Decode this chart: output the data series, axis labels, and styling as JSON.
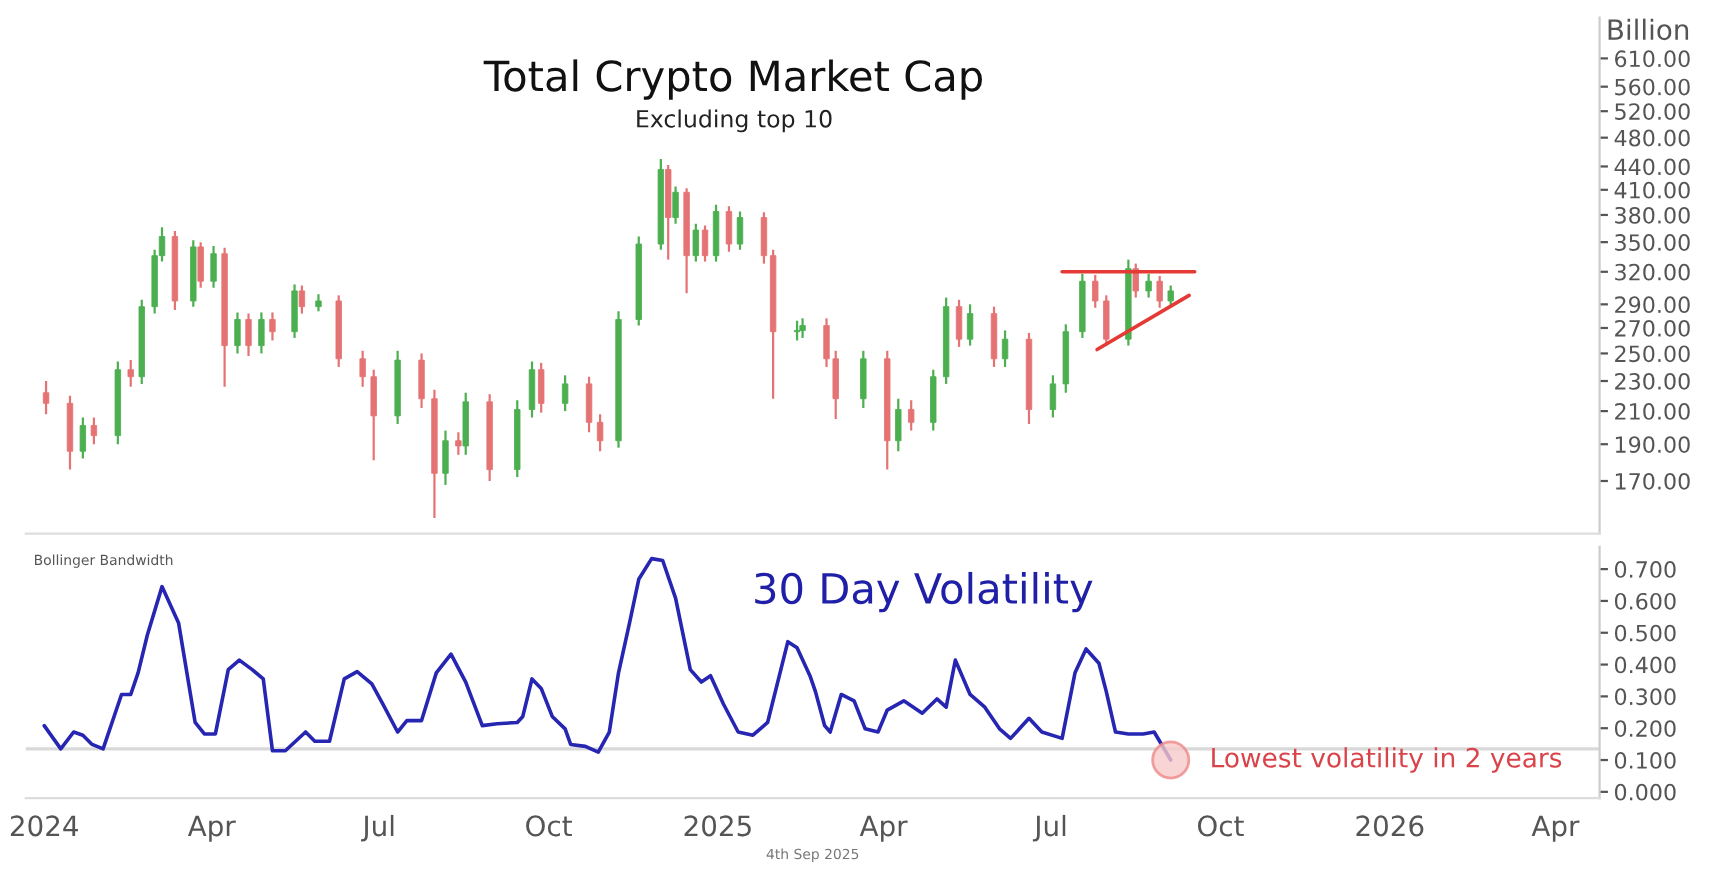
{
  "chart_data": [
    {
      "type": "candlestick",
      "title": "Total Crypto Market Cap",
      "subtitle": "Excluding top 10",
      "ylabel": "Billion",
      "log": true,
      "tick_labels": "y",
      "xlim": [
        "2023-12-22",
        "2026-04-25"
      ],
      "ylim": [
        145,
        690
      ],
      "yticks": [
        {
          "value": 170,
          "label": "170.00"
        },
        {
          "value": 190,
          "label": "190.00"
        },
        {
          "value": 210,
          "label": "210.00"
        },
        {
          "value": 230,
          "label": "230.00"
        },
        {
          "value": 250,
          "label": "250.00"
        },
        {
          "value": 270,
          "label": "270.00"
        },
        {
          "value": 290,
          "label": "290.00"
        },
        {
          "value": 320,
          "label": "320.00"
        },
        {
          "value": 350,
          "label": "350.00"
        },
        {
          "value": 380,
          "label": "380.00"
        },
        {
          "value": 410,
          "label": "410.00"
        },
        {
          "value": 440,
          "label": "440.00"
        },
        {
          "value": 480,
          "label": "480.00"
        },
        {
          "value": 520,
          "label": "520.00"
        },
        {
          "value": 560,
          "label": "560.00"
        },
        {
          "value": 610,
          "label": "610.00"
        }
      ],
      "x": [
        "2024-01-02",
        "2024-01-15",
        "2024-01-22",
        "2024-01-28",
        "2024-02-10",
        "2024-02-17",
        "2024-02-23",
        "2024-03-01",
        "2024-03-05",
        "2024-03-12",
        "2024-03-22",
        "2024-03-26",
        "2024-04-02",
        "2024-04-08",
        "2024-04-15",
        "2024-04-21",
        "2024-04-28",
        "2024-05-04",
        "2024-05-16",
        "2024-05-20",
        "2024-05-29",
        "2024-06-09",
        "2024-06-22",
        "2024-06-28",
        "2024-07-11",
        "2024-07-24",
        "2024-07-31",
        "2024-08-06",
        "2024-08-13",
        "2024-08-17",
        "2024-08-30",
        "2024-09-14",
        "2024-09-22",
        "2024-09-27",
        "2024-10-10",
        "2024-10-23",
        "2024-10-29",
        "2024-11-08",
        "2024-11-19",
        "2024-12-01",
        "2024-12-05",
        "2024-12-09",
        "2024-12-15",
        "2024-12-20",
        "2024-12-25",
        "2024-12-31",
        "2025-01-07",
        "2025-01-13",
        "2025-01-26",
        "2025-01-31",
        "2025-02-13",
        "2025-02-16",
        "2025-03-01",
        "2025-03-06",
        "2025-03-21",
        "2025-04-03",
        "2025-04-09",
        "2025-04-16",
        "2025-04-28",
        "2025-05-05",
        "2025-05-12",
        "2025-05-18",
        "2025-05-31",
        "2025-06-06",
        "2025-06-19",
        "2025-07-02",
        "2025-07-09",
        "2025-07-18",
        "2025-07-25",
        "2025-07-31",
        "2025-08-12",
        "2025-08-16",
        "2025-08-23",
        "2025-08-29",
        "2025-09-04"
      ],
      "ohlc": [
        [
          222,
          230,
          208,
          215
        ],
        [
          215,
          220,
          176,
          186
        ],
        [
          186,
          206,
          182,
          201
        ],
        [
          201,
          206,
          190,
          195
        ],
        [
          195,
          244,
          190,
          238
        ],
        [
          238,
          245,
          226,
          233
        ],
        [
          233,
          294,
          228,
          288
        ],
        [
          288,
          342,
          282,
          336
        ],
        [
          336,
          366,
          330,
          356
        ],
        [
          356,
          362,
          285,
          293
        ],
        [
          293,
          352,
          288,
          345
        ],
        [
          345,
          350,
          305,
          311
        ],
        [
          311,
          346,
          305,
          338
        ],
        [
          338,
          344,
          226,
          256
        ],
        [
          256,
          283,
          250,
          277
        ],
        [
          277,
          282,
          248,
          256
        ],
        [
          256,
          283,
          250,
          277
        ],
        [
          277,
          283,
          260,
          267
        ],
        [
          267,
          308,
          262,
          302
        ],
        [
          302,
          307,
          282,
          288
        ],
        [
          288,
          299,
          284,
          293
        ],
        [
          293,
          298,
          240,
          246
        ],
        [
          246,
          252,
          226,
          233
        ],
        [
          233,
          238,
          181,
          207
        ],
        [
          207,
          252,
          202,
          245
        ],
        [
          245,
          250,
          212,
          218
        ],
        [
          218,
          224,
          152,
          174
        ],
        [
          174,
          198,
          168,
          192
        ],
        [
          192,
          197,
          184,
          189
        ],
        [
          189,
          222,
          184,
          216
        ],
        [
          216,
          221,
          170,
          176
        ],
        [
          176,
          217,
          172,
          211
        ],
        [
          211,
          244,
          206,
          238
        ],
        [
          238,
          243,
          209,
          215
        ],
        [
          215,
          234,
          210,
          228
        ],
        [
          228,
          233,
          197,
          203
        ],
        [
          203,
          208,
          186,
          192
        ],
        [
          192,
          284,
          188,
          277
        ],
        [
          277,
          356,
          272,
          348
        ],
        [
          348,
          450,
          342,
          436
        ],
        [
          436,
          442,
          332,
          377
        ],
        [
          377,
          414,
          370,
          407
        ],
        [
          407,
          412,
          300,
          336
        ],
        [
          336,
          370,
          330,
          363
        ],
        [
          363,
          368,
          330,
          336
        ],
        [
          336,
          392,
          330,
          384
        ],
        [
          384,
          390,
          340,
          348
        ],
        [
          348,
          384,
          342,
          377
        ],
        [
          377,
          383,
          328,
          336
        ],
        [
          336,
          342,
          218,
          267
        ],
        [
          267,
          276,
          260,
          268
        ],
        [
          268,
          278,
          262,
          272
        ],
        [
          272,
          278,
          240,
          246
        ],
        [
          246,
          252,
          205,
          218
        ],
        [
          218,
          252,
          212,
          246
        ],
        [
          246,
          252,
          176,
          192
        ],
        [
          192,
          218,
          186,
          211
        ],
        [
          211,
          217,
          198,
          203
        ],
        [
          203,
          238,
          198,
          233
        ],
        [
          233,
          296,
          228,
          288
        ],
        [
          288,
          294,
          255,
          261
        ],
        [
          261,
          290,
          256,
          282
        ],
        [
          282,
          288,
          240,
          246
        ],
        [
          246,
          268,
          240,
          261
        ],
        [
          261,
          266,
          202,
          211
        ],
        [
          211,
          234,
          206,
          228
        ],
        [
          228,
          273,
          222,
          267
        ],
        [
          267,
          318,
          262,
          311
        ],
        [
          311,
          317,
          287,
          293
        ],
        [
          293,
          298,
          256,
          261
        ],
        [
          261,
          332,
          256,
          323
        ],
        [
          323,
          328,
          296,
          302
        ],
        [
          302,
          318,
          296,
          311
        ],
        [
          311,
          316,
          287,
          293
        ],
        [
          293,
          307,
          288,
          302
        ]
      ],
      "series": [
        {
          "type": "line",
          "color": "#e53935",
          "x": [
            "2025-07-07",
            "2025-09-17"
          ],
          "values": [
            320,
            320
          ]
        },
        {
          "type": "line",
          "color": "#e53935",
          "x": [
            "2025-07-26",
            "2025-09-14"
          ],
          "values": [
            253,
            298
          ]
        }
      ]
    },
    {
      "type": "line",
      "xlim": [
        "2023-12-22",
        "2026-04-25"
      ],
      "ylim": [
        -0.02,
        0.77
      ],
      "xticks": [
        {
          "value": "2024-01-01",
          "label": "2024"
        },
        {
          "value": "2024-04-01",
          "label": "Apr"
        },
        {
          "value": "2024-07-01",
          "label": "Jul"
        },
        {
          "value": "2024-10-01",
          "label": "Oct"
        },
        {
          "value": "2025-01-01",
          "label": "2025"
        },
        {
          "value": "2025-04-01",
          "label": "Apr"
        },
        {
          "value": "2025-07-01",
          "label": "Jul"
        },
        {
          "value": "2025-10-01",
          "label": "Oct"
        },
        {
          "value": "2026-01-01",
          "label": "2026"
        },
        {
          "value": "2026-04-01",
          "label": "Apr"
        }
      ],
      "yticks": [
        {
          "value": 0,
          "label": "0.000"
        },
        {
          "value": 0.1,
          "label": "0.100"
        },
        {
          "value": 0.2,
          "label": "0.200"
        },
        {
          "value": 0.3,
          "label": "0.300"
        },
        {
          "value": 0.4,
          "label": "0.400"
        },
        {
          "value": 0.5,
          "label": "0.500"
        },
        {
          "value": 0.6,
          "label": "0.600"
        },
        {
          "value": 0.7,
          "label": "0.700"
        }
      ],
      "ref_lines": [
        {
          "axis": "y",
          "value": 0.135,
          "color": "#d9d9d9"
        }
      ],
      "annotations": [
        "Bollinger Bandwidth",
        "30 Day Volatility",
        {
          "text": "Lowest volatility in 2 years",
          "x": "2025-09-04",
          "y": 0.1
        },
        "4th Sep 2025"
      ],
      "x": [
        "2024-01-01",
        "2024-01-10",
        "2024-01-17",
        "2024-01-22",
        "2024-01-27",
        "2024-02-02",
        "2024-02-12",
        "2024-02-17",
        "2024-02-21",
        "2024-02-26",
        "2024-03-05",
        "2024-03-14",
        "2024-03-23",
        "2024-03-28",
        "2024-04-03",
        "2024-04-10",
        "2024-04-16",
        "2024-04-23",
        "2024-04-29",
        "2024-05-04",
        "2024-05-11",
        "2024-05-22",
        "2024-05-27",
        "2024-06-04",
        "2024-06-12",
        "2024-06-19",
        "2024-06-27",
        "2024-07-03",
        "2024-07-11",
        "2024-07-16",
        "2024-07-24",
        "2024-08-01",
        "2024-08-09",
        "2024-08-17",
        "2024-08-26",
        "2024-09-03",
        "2024-09-14",
        "2024-09-17",
        "2024-09-22",
        "2024-09-27",
        "2024-10-03",
        "2024-10-10",
        "2024-10-13",
        "2024-10-21",
        "2024-10-28",
        "2024-11-03",
        "2024-11-08",
        "2024-11-14",
        "2024-11-19",
        "2024-11-26",
        "2024-12-02",
        "2024-12-09",
        "2024-12-17",
        "2024-12-23",
        "2024-12-28",
        "2025-01-04",
        "2025-01-12",
        "2025-01-20",
        "2025-01-28",
        "2025-02-08",
        "2025-02-13",
        "2025-02-20",
        "2025-02-23",
        "2025-02-28",
        "2025-03-03",
        "2025-03-09",
        "2025-03-16",
        "2025-03-22",
        "2025-03-29",
        "2025-04-03",
        "2025-04-12",
        "2025-04-22",
        "2025-04-30",
        "2025-05-05",
        "2025-05-10",
        "2025-05-18",
        "2025-05-26",
        "2025-06-03",
        "2025-06-09",
        "2025-06-19",
        "2025-06-26",
        "2025-07-07",
        "2025-07-14",
        "2025-07-20",
        "2025-07-27",
        "2025-07-31",
        "2025-08-05",
        "2025-08-12",
        "2025-08-20",
        "2025-08-26",
        "2025-08-29",
        "2025-09-04"
      ],
      "series": [
        {
          "color": "#2626b3",
          "values": [
            0.208,
            0.135,
            0.188,
            0.178,
            0.149,
            0.135,
            0.306,
            0.306,
            0.374,
            0.492,
            0.645,
            0.531,
            0.218,
            0.182,
            0.182,
            0.384,
            0.414,
            0.384,
            0.355,
            0.129,
            0.129,
            0.188,
            0.159,
            0.159,
            0.355,
            0.378,
            0.339,
            0.276,
            0.188,
            0.224,
            0.224,
            0.374,
            0.433,
            0.345,
            0.208,
            0.214,
            0.218,
            0.237,
            0.355,
            0.325,
            0.237,
            0.198,
            0.149,
            0.143,
            0.125,
            0.188,
            0.374,
            0.531,
            0.668,
            0.733,
            0.727,
            0.609,
            0.384,
            0.345,
            0.365,
            0.276,
            0.188,
            0.178,
            0.218,
            0.472,
            0.453,
            0.365,
            0.315,
            0.208,
            0.188,
            0.306,
            0.286,
            0.198,
            0.188,
            0.257,
            0.286,
            0.247,
            0.292,
            0.266,
            0.414,
            0.306,
            0.266,
            0.198,
            0.168,
            0.231,
            0.188,
            0.168,
            0.374,
            0.449,
            0.404,
            0.315,
            0.188,
            0.182,
            0.182,
            0.188,
            0.159,
            0.1
          ]
        }
      ]
    }
  ]
}
